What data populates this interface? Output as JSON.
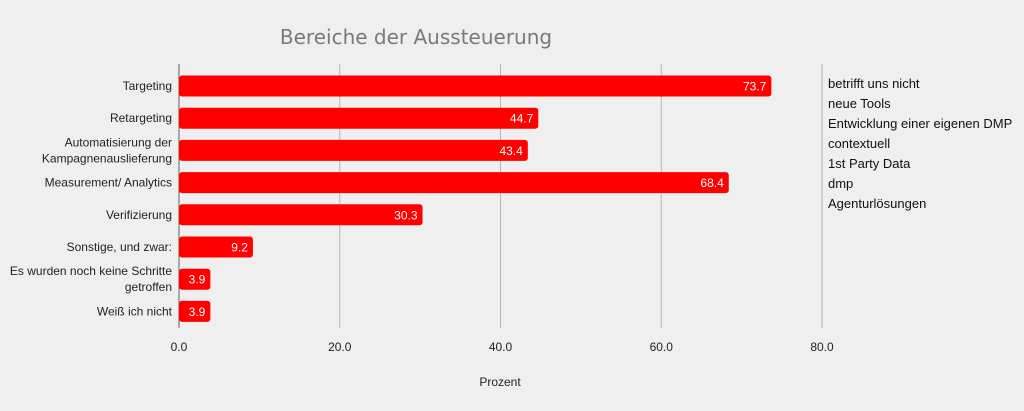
{
  "chart_data": {
    "type": "bar",
    "orientation": "horizontal",
    "title": "Bereiche der Aussteuerung",
    "xlabel": "Prozent",
    "ylabel": "",
    "xlim": [
      0,
      80
    ],
    "xticks": [
      "0.0",
      "20.0",
      "40.0",
      "60.0",
      "80.0"
    ],
    "grid": true,
    "bar_color": "#fe0000",
    "categories": [
      [
        "Targeting"
      ],
      [
        "Retargeting"
      ],
      [
        "Automatisierung der",
        "Kampagnenauslieferung"
      ],
      [
        "Measurement/ Analytics"
      ],
      [
        "Verifizierung"
      ],
      [
        "Sonstige, und zwar:"
      ],
      [
        "Es wurden noch keine Schritte",
        "getroffen"
      ],
      [
        "Weiß ich nicht"
      ]
    ],
    "values": [
      73.7,
      44.7,
      43.4,
      68.4,
      30.3,
      9.2,
      3.9,
      3.9
    ],
    "value_labels": [
      "73.7",
      "44.7",
      "43.4",
      "68.4",
      "30.3",
      "9.2",
      "3.9",
      "3.9"
    ]
  },
  "annotations": {
    "other_responses": [
      "betrifft uns nicht",
      "neue Tools",
      "Entwicklung einer eigenen DMP",
      "contextuell",
      "1st Party Data",
      "dmp",
      "Agenturlösungen"
    ]
  }
}
